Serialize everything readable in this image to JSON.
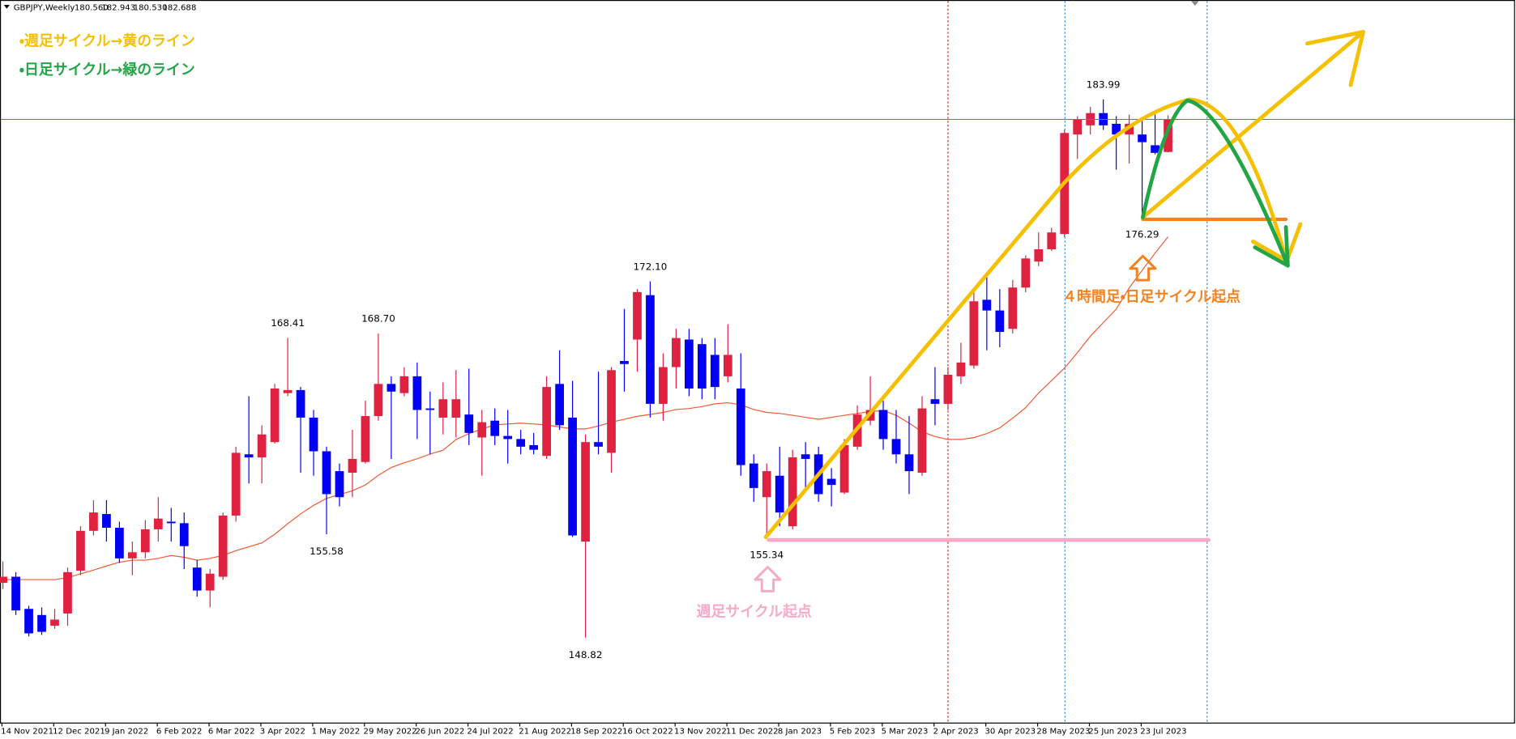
{
  "chart_data": {
    "type": "candlestick",
    "title": "GBPJPY,Weekly",
    "quote_labels": [
      "180.560",
      "182.943",
      "180.530",
      "182.688"
    ],
    "annotations": [
      "・週足サイクル→黄のライン",
      "・日足サイクル→緑のライン",
      "週足サイクル起点",
      "４時間足・日足サイクル起点"
    ],
    "categories": [
      "14 Nov 2021",
      null,
      null,
      null,
      "12 Dec 2021",
      null,
      null,
      null,
      "9 Jan 2022",
      null,
      null,
      null,
      "6 Feb 2022",
      null,
      null,
      null,
      "6 Mar 2022",
      null,
      null,
      null,
      "3 Apr 2022",
      null,
      null,
      null,
      "1 May 2022",
      null,
      null,
      null,
      "29 May 2022",
      null,
      null,
      null,
      "26 Jun 2022",
      null,
      null,
      null,
      "24 Jul 2022",
      null,
      null,
      null,
      "21 Aug 2022",
      null,
      null,
      null,
      "18 Sep 2022",
      null,
      null,
      null,
      "16 Oct 2022",
      null,
      null,
      null,
      "13 Nov 2022",
      null,
      null,
      null,
      "11 Dec 2022",
      null,
      null,
      null,
      "8 Jan 2023",
      null,
      null,
      null,
      "5 Feb 2023",
      null,
      null,
      null,
      "5 Mar 2023",
      null,
      null,
      null,
      "2 Apr 2023",
      null,
      null,
      null,
      "30 Apr 2023",
      null,
      null,
      null,
      "28 May 2023",
      null,
      null,
      null,
      "25 Jun 2023",
      null,
      null,
      null,
      "23 Jul 2023",
      null,
      null
    ],
    "open": [
      152.4,
      152.8,
      150.7,
      150.3,
      149.6,
      150.4,
      153.2,
      155.8,
      156.9,
      156.0,
      154.0,
      154.4,
      155.9,
      156.4,
      156.3,
      153.4,
      151.9,
      152.8,
      156.8,
      160.8,
      160.6,
      161.6,
      164.8,
      165.0,
      163.2,
      161.0,
      159.7,
      159.6,
      160.3,
      163.3,
      165.4,
      164.8,
      165.9,
      163.8,
      163.2,
      163.2,
      163.4,
      161.9,
      163.0,
      162.0,
      161.8,
      161.4,
      160.7,
      165.4,
      163.2,
      155.1,
      161.6,
      160.9,
      166.9,
      168.3,
      171.2,
      164.1,
      166.5,
      168.3,
      168.0,
      167.3,
      165.9,
      165.1,
      160.2,
      158.0,
      159.4,
      156.1,
      160.8,
      160.8,
      159.2,
      158.3,
      161.3,
      163.0,
      163.7,
      161.8,
      160.8,
      159.6,
      164.4,
      164.1,
      165.9,
      166.6,
      170.9,
      170.2,
      169.0,
      171.7,
      173.4,
      174.2,
      175.2,
      181.7,
      182.3,
      183.1,
      182.4,
      181.7,
      181.7,
      181.0,
      180.56
    ],
    "high": [
      153.8,
      153.1,
      150.9,
      150.8,
      150.7,
      153.4,
      156.1,
      157.8,
      157.8,
      156.4,
      155.1,
      156.5,
      158.0,
      157.3,
      157.0,
      153.9,
      153.3,
      157.0,
      161.3,
      164.6,
      162.7,
      165.4,
      168.41,
      165.2,
      163.7,
      161.3,
      160.2,
      162.4,
      164.3,
      168.7,
      165.9,
      166.5,
      166.8,
      164.9,
      165.5,
      166.3,
      166.4,
      163.7,
      163.8,
      163.7,
      162.4,
      162.2,
      165.9,
      167.6,
      165.6,
      162.1,
      166.2,
      166.5,
      170.3,
      171.6,
      172.1,
      167.4,
      169.0,
      169.0,
      168.4,
      168.4,
      169.3,
      167.4,
      160.8,
      160.2,
      161.3,
      161.1,
      161.6,
      161.3,
      159.9,
      161.8,
      164.0,
      165.9,
      164.3,
      163.7,
      163.3,
      164.6,
      166.5,
      166.5,
      168.1,
      171.6,
      172.5,
      171.6,
      172.2,
      173.8,
      175.3,
      175.6,
      182.0,
      182.9,
      183.5,
      183.99,
      182.9,
      183.0,
      182.6,
      183.0,
      182.943
    ],
    "low": [
      152.0,
      150.3,
      148.9,
      149.0,
      149.4,
      149.6,
      152.9,
      155.5,
      155.1,
      153.7,
      152.9,
      154.0,
      155.1,
      155.1,
      153.3,
      151.5,
      150.8,
      152.6,
      156.4,
      158.9,
      158.9,
      161.5,
      164.6,
      159.6,
      159.4,
      155.58,
      157.4,
      158.0,
      160.2,
      163.0,
      160.5,
      164.6,
      161.8,
      160.8,
      162.1,
      161.9,
      161.4,
      159.4,
      161.4,
      160.2,
      160.8,
      160.8,
      160.5,
      162.4,
      155.4,
      148.82,
      160.8,
      159.6,
      164.9,
      166.2,
      163.2,
      163.0,
      165.1,
      164.6,
      164.4,
      164.4,
      165.5,
      159.4,
      157.7,
      155.34,
      156.1,
      155.9,
      158.3,
      157.7,
      157.4,
      158.2,
      161.1,
      162.7,
      161.1,
      160.2,
      158.2,
      159.4,
      162.7,
      163.7,
      165.4,
      166.4,
      167.6,
      167.8,
      168.7,
      171.4,
      173.1,
      174.1,
      175.0,
      180.1,
      181.7,
      182.0,
      179.4,
      179.8,
      176.29,
      180.4,
      180.53
    ],
    "close": [
      152.8,
      150.6,
      149.1,
      149.2,
      150.0,
      153.1,
      155.8,
      157.0,
      156.0,
      154.0,
      154.4,
      155.9,
      156.6,
      156.3,
      154.8,
      151.9,
      153.0,
      156.8,
      160.9,
      160.6,
      162.1,
      165.1,
      165.0,
      163.2,
      161.0,
      158.2,
      158.0,
      160.5,
      163.3,
      165.4,
      164.9,
      165.9,
      163.7,
      163.7,
      164.4,
      164.4,
      162.2,
      162.9,
      162.0,
      161.8,
      161.3,
      161.1,
      165.2,
      162.7,
      155.5,
      161.6,
      161.3,
      166.3,
      166.7,
      171.4,
      164.1,
      166.5,
      168.4,
      165.1,
      165.1,
      165.2,
      167.3,
      160.1,
      158.6,
      159.7,
      157.0,
      160.6,
      160.5,
      158.2,
      158.8,
      161.4,
      163.4,
      163.7,
      161.8,
      160.8,
      159.7,
      163.8,
      164.1,
      166.0,
      166.8,
      170.8,
      170.2,
      168.8,
      171.7,
      173.6,
      174.2,
      175.3,
      181.8,
      182.7,
      183.1,
      182.3,
      181.7,
      182.4,
      181.2,
      180.5,
      182.688
    ],
    "high_value_labels": [
      null,
      null,
      null,
      null,
      null,
      null,
      null,
      null,
      null,
      null,
      null,
      null,
      null,
      null,
      null,
      null,
      null,
      null,
      null,
      null,
      null,
      null,
      "168.41",
      null,
      null,
      null,
      null,
      null,
      null,
      "168.70",
      null,
      null,
      null,
      null,
      null,
      null,
      null,
      null,
      null,
      null,
      null,
      null,
      null,
      null,
      null,
      null,
      null,
      null,
      null,
      null,
      "172.10",
      null,
      null,
      null,
      null,
      null,
      null,
      null,
      null,
      null,
      null,
      null,
      null,
      null,
      null,
      null,
      null,
      null,
      null,
      null,
      null,
      null,
      null,
      null,
      null,
      null,
      null,
      null,
      null,
      null,
      null,
      null,
      null,
      null,
      null,
      "183.99",
      null,
      null,
      null,
      null,
      null
    ],
    "low_value_labels": [
      null,
      null,
      null,
      null,
      null,
      null,
      null,
      null,
      null,
      null,
      null,
      null,
      null,
      null,
      null,
      null,
      null,
      null,
      null,
      null,
      null,
      null,
      null,
      null,
      null,
      "155.58",
      null,
      null,
      null,
      null,
      null,
      null,
      null,
      null,
      null,
      null,
      null,
      null,
      null,
      null,
      null,
      null,
      null,
      null,
      null,
      "148.82",
      null,
      null,
      null,
      null,
      null,
      null,
      null,
      null,
      null,
      null,
      null,
      null,
      null,
      "155.34",
      null,
      null,
      null,
      null,
      null,
      null,
      null,
      null,
      null,
      null,
      null,
      null,
      null,
      null,
      null,
      null,
      null,
      null,
      null,
      null,
      null,
      null,
      null,
      null,
      null,
      null,
      null,
      null,
      "176.29",
      null,
      null
    ],
    "moving_average_values": [
      152.61,
      152.61,
      152.61,
      152.61,
      152.61,
      152.74,
      152.99,
      153.24,
      153.5,
      153.75,
      153.88,
      153.88,
      154.0,
      154.19,
      154.07,
      153.88,
      154.0,
      154.19,
      154.51,
      154.76,
      155.01,
      155.58,
      156.27,
      156.91,
      157.47,
      157.92,
      158.17,
      158.42,
      158.8,
      159.43,
      159.94,
      160.25,
      160.51,
      160.82,
      161.07,
      161.77,
      162.15,
      162.46,
      162.72,
      162.78,
      162.84,
      162.78,
      162.72,
      162.59,
      162.46,
      162.46,
      162.65,
      162.9,
      163.09,
      163.28,
      163.41,
      163.54,
      163.73,
      163.79,
      163.92,
      164.1,
      164.17,
      164.04,
      163.73,
      163.54,
      163.47,
      163.35,
      163.22,
      163.09,
      163.22,
      163.35,
      163.47,
      163.6,
      163.66,
      163.35,
      162.84,
      162.27,
      161.96,
      161.77,
      161.77,
      161.89,
      162.15,
      162.53,
      163.16,
      163.85,
      164.8,
      165.62,
      166.44,
      167.45,
      168.52,
      169.41,
      170.29,
      171.68,
      172.82,
      173.95,
      175.02
    ],
    "moving_average_color": "#f05a32",
    "up_color": "#e0213f",
    "down_color": "#0000f5",
    "ylim": [
      143.27,
      190.49
    ]
  }
}
